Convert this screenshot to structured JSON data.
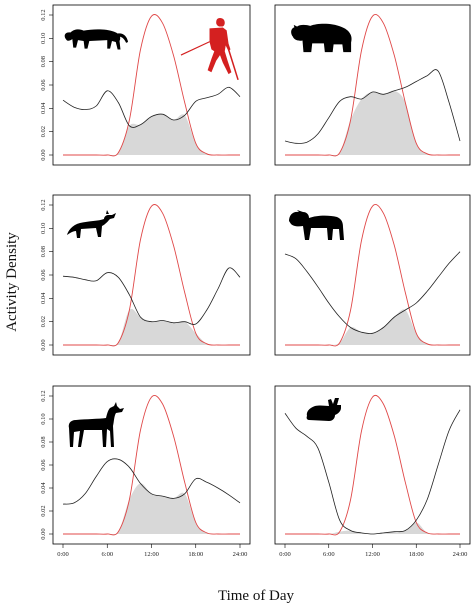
{
  "figure": {
    "ylabel": "Activity Density",
    "xlabel": "Time of Day"
  },
  "colors": {
    "human_line": "#e04848",
    "animal_line": "#222222",
    "overlap_fill": "#d8d8d8",
    "frame": "#000000",
    "human_icon": "#d42020",
    "animal_icon": "#000000"
  },
  "chart_data": [
    {
      "type": "line",
      "panel": "row1-left",
      "animal_icon": "cougar-icon",
      "human_icon": "hiker-icon",
      "x": [
        0,
        1.5,
        3,
        4.5,
        6,
        7.5,
        9,
        10.5,
        12,
        13.5,
        15,
        16.5,
        18,
        19.5,
        21,
        22.5,
        24
      ],
      "xlim": [
        0,
        24
      ],
      "ylim": [
        0,
        0.12
      ],
      "yticks": [
        "0.00",
        "0.02",
        "0.04",
        "0.06",
        "0.08",
        "0.10",
        "0.12"
      ],
      "xticks": [],
      "series": [
        {
          "values": [
            0.047,
            0.041,
            0.039,
            0.042,
            0.055,
            0.045,
            0.025,
            0.026,
            0.033,
            0.035,
            0.03,
            0.034,
            0.046,
            0.049,
            0.052,
            0.058,
            0.05
          ]
        },
        {
          "values": [
            0.0,
            0.0,
            0.0,
            0.0,
            0.0,
            0.002,
            0.03,
            0.09,
            0.119,
            0.113,
            0.085,
            0.045,
            0.01,
            0.001,
            0.0,
            0.0,
            0.0
          ]
        }
      ]
    },
    {
      "type": "line",
      "panel": "row1-right",
      "animal_icon": "bear-icon",
      "x": [
        0,
        1.5,
        3,
        4.5,
        6,
        7.5,
        9,
        10.5,
        12,
        13.5,
        15,
        16.5,
        18,
        19.5,
        21,
        22.5,
        24
      ],
      "xlim": [
        0,
        24
      ],
      "ylim": [
        0,
        0.12
      ],
      "yticks": [],
      "xticks": [],
      "series": [
        {
          "values": [
            0.012,
            0.01,
            0.011,
            0.018,
            0.032,
            0.046,
            0.05,
            0.048,
            0.054,
            0.052,
            0.055,
            0.058,
            0.063,
            0.068,
            0.072,
            0.045,
            0.012
          ]
        },
        {
          "values": [
            0.0,
            0.0,
            0.0,
            0.0,
            0.0,
            0.002,
            0.03,
            0.09,
            0.119,
            0.113,
            0.085,
            0.045,
            0.01,
            0.001,
            0.0,
            0.0,
            0.0
          ]
        }
      ]
    },
    {
      "type": "line",
      "panel": "row2-left",
      "animal_icon": "fox-icon",
      "x": [
        0,
        1.5,
        3,
        4.5,
        6,
        7.5,
        9,
        10.5,
        12,
        13.5,
        15,
        16.5,
        18,
        19.5,
        21,
        22.5,
        24
      ],
      "xlim": [
        0,
        24
      ],
      "ylim": [
        0,
        0.12
      ],
      "yticks": [
        "0.00",
        "0.02",
        "0.04",
        "0.06",
        "0.08",
        "0.10",
        "0.12"
      ],
      "xticks": [],
      "series": [
        {
          "values": [
            0.059,
            0.058,
            0.056,
            0.055,
            0.062,
            0.058,
            0.043,
            0.024,
            0.02,
            0.021,
            0.019,
            0.02,
            0.018,
            0.03,
            0.048,
            0.066,
            0.058
          ]
        },
        {
          "values": [
            0.0,
            0.0,
            0.0,
            0.0,
            0.0,
            0.002,
            0.03,
            0.09,
            0.119,
            0.113,
            0.085,
            0.045,
            0.01,
            0.001,
            0.0,
            0.0,
            0.0
          ]
        }
      ]
    },
    {
      "type": "line",
      "panel": "row2-right",
      "animal_icon": "bobcat-icon",
      "x": [
        0,
        1.5,
        3,
        4.5,
        6,
        7.5,
        9,
        10.5,
        12,
        13.5,
        15,
        16.5,
        18,
        19.5,
        21,
        22.5,
        24
      ],
      "xlim": [
        0,
        24
      ],
      "ylim": [
        0,
        0.12
      ],
      "yticks": [],
      "xticks": [],
      "series": [
        {
          "values": [
            0.078,
            0.074,
            0.063,
            0.05,
            0.036,
            0.024,
            0.015,
            0.011,
            0.01,
            0.015,
            0.024,
            0.03,
            0.036,
            0.046,
            0.058,
            0.07,
            0.08
          ]
        },
        {
          "values": [
            0.0,
            0.0,
            0.0,
            0.0,
            0.0,
            0.002,
            0.03,
            0.09,
            0.119,
            0.113,
            0.085,
            0.045,
            0.01,
            0.001,
            0.0,
            0.0,
            0.0
          ]
        }
      ]
    },
    {
      "type": "line",
      "panel": "row3-left",
      "animal_icon": "deer-icon",
      "x": [
        0,
        1.5,
        3,
        4.5,
        6,
        7.5,
        9,
        10.5,
        12,
        13.5,
        15,
        16.5,
        18,
        19.5,
        21,
        22.5,
        24
      ],
      "xlim": [
        0,
        24
      ],
      "ylim": [
        0,
        0.12
      ],
      "yticks": [
        "0.00",
        "0.02",
        "0.04",
        "0.06",
        "0.08",
        "0.10",
        "0.12"
      ],
      "xticks": [
        "0:00",
        "6:00",
        "12:00",
        "18:00",
        "24:00"
      ],
      "series": [
        {
          "values": [
            0.026,
            0.027,
            0.035,
            0.05,
            0.063,
            0.065,
            0.058,
            0.044,
            0.035,
            0.033,
            0.031,
            0.035,
            0.048,
            0.045,
            0.04,
            0.034,
            0.027
          ]
        },
        {
          "values": [
            0.0,
            0.0,
            0.0,
            0.0,
            0.0,
            0.002,
            0.03,
            0.09,
            0.119,
            0.113,
            0.085,
            0.045,
            0.01,
            0.001,
            0.0,
            0.0,
            0.0
          ]
        }
      ]
    },
    {
      "type": "line",
      "panel": "row3-right",
      "animal_icon": "rabbit-icon",
      "x": [
        0,
        1.5,
        3,
        4.5,
        6,
        7.5,
        9,
        10.5,
        12,
        13.5,
        15,
        16.5,
        18,
        19.5,
        21,
        22.5,
        24
      ],
      "xlim": [
        0,
        24
      ],
      "ylim": [
        0,
        0.12
      ],
      "yticks": [],
      "xticks": [
        "0:00",
        "6:00",
        "12:00",
        "18:00",
        "24:00"
      ],
      "series": [
        {
          "values": [
            0.105,
            0.092,
            0.085,
            0.075,
            0.045,
            0.012,
            0.003,
            0.001,
            0.0,
            0.001,
            0.002,
            0.003,
            0.012,
            0.03,
            0.06,
            0.09,
            0.108
          ]
        },
        {
          "values": [
            0.0,
            0.0,
            0.0,
            0.0,
            0.0,
            0.002,
            0.03,
            0.09,
            0.119,
            0.113,
            0.085,
            0.045,
            0.01,
            0.001,
            0.0,
            0.0,
            0.0
          ]
        }
      ]
    }
  ]
}
